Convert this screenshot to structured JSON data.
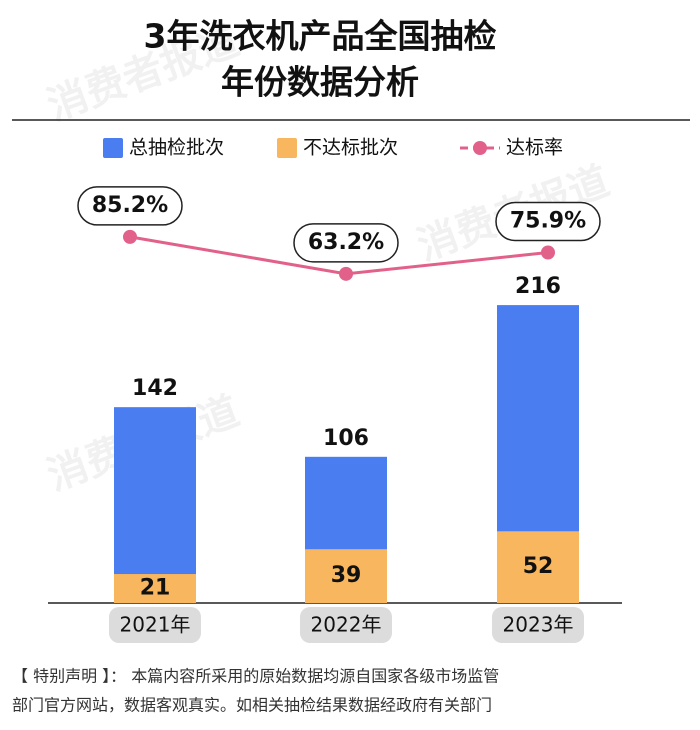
{
  "chart_data": {
    "type": "bar",
    "title": [
      "3年洗衣机产品全国抽检",
      "年份数据分析"
    ],
    "watermark": "消费者报道",
    "categories": [
      "2021年",
      "2022年",
      "2023年"
    ],
    "ylim": [
      0,
      240
    ],
    "y2lim": [
      0,
      100
    ],
    "series": [
      {
        "name": "总抽检批次",
        "color": "#4a7ef0",
        "values": [
          142,
          106,
          216
        ]
      },
      {
        "name": "不达标批次",
        "color": "#f8b65e",
        "values": [
          21,
          39,
          52
        ]
      },
      {
        "name": "达标率",
        "color": "#e2618b",
        "type": "line",
        "axis": "y2",
        "values": [
          85.2,
          63.2,
          75.9
        ],
        "value_labels": [
          "85.2%",
          "63.2%",
          "75.9%"
        ]
      }
    ],
    "notes": [
      "【 特别声明 】： 本篇内容所采用的原始数据均源自国家各级市场监管",
      "部门官方网站，数据客观真实。如相关抽检结果数据经政府有关部门"
    ]
  }
}
